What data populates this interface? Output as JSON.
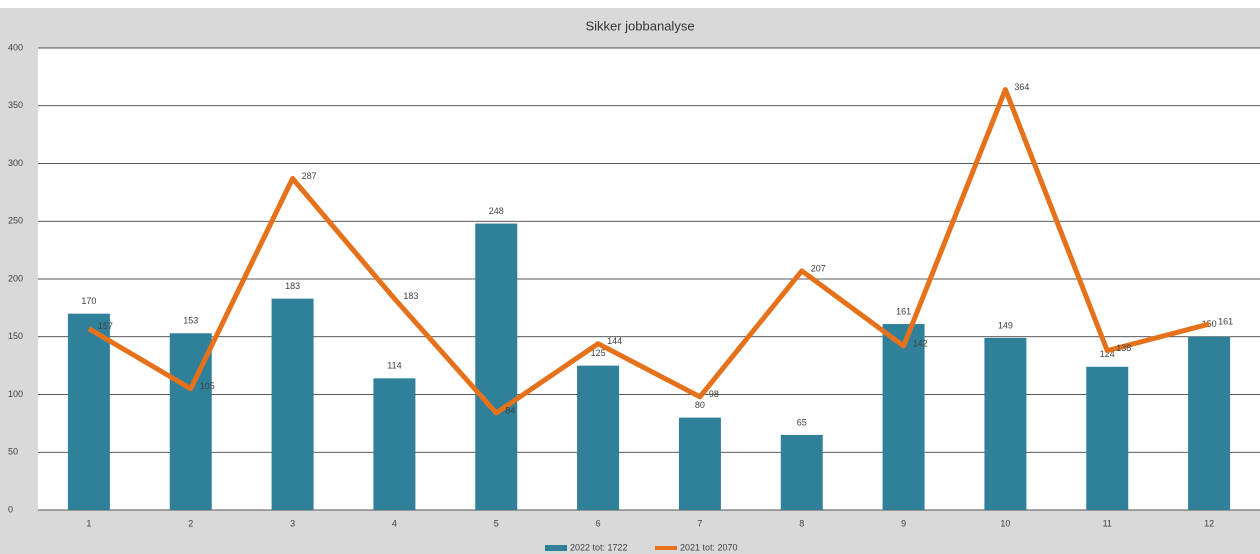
{
  "chart_data": {
    "type": "bar",
    "title": "Sikker jobbanalyse",
    "categories": [
      "1",
      "2",
      "3",
      "4",
      "5",
      "6",
      "7",
      "8",
      "9",
      "10",
      "11",
      "12"
    ],
    "series": [
      {
        "name": "2022 tot: 1722",
        "type": "bar",
        "color": "#31809a",
        "values": [
          170,
          153,
          183,
          114,
          248,
          125,
          80,
          65,
          161,
          149,
          124,
          150
        ]
      },
      {
        "name": "2021 tot: 2070",
        "type": "line",
        "color": "#e5711a",
        "values": [
          157,
          105,
          287,
          183,
          84,
          144,
          98,
          207,
          142,
          364,
          138,
          161
        ]
      }
    ],
    "ylim": [
      0,
      400
    ],
    "yticks": [
      0,
      50,
      100,
      150,
      200,
      250,
      300,
      350,
      400
    ],
    "grid": true,
    "legend": "bottom"
  }
}
